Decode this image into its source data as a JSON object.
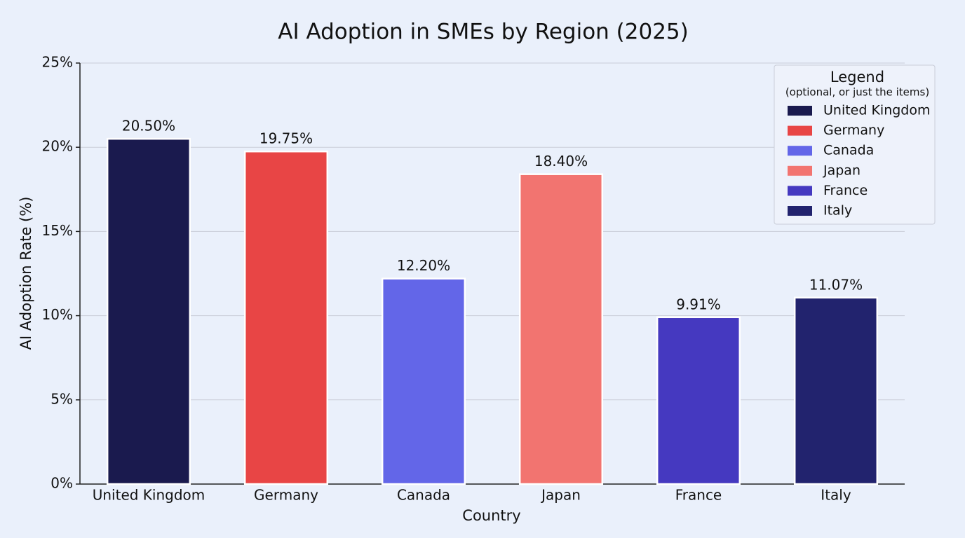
{
  "chart_data": {
    "type": "bar",
    "title": "AI Adoption in SMEs by Region (2025)",
    "x_label": "Country",
    "y_label": "AI Adoption Rate (%)",
    "categories": [
      "United Kingdom",
      "Germany",
      "Canada",
      "Japan",
      "France",
      "Italy"
    ],
    "values": [
      20.5,
      19.75,
      12.2,
      18.4,
      9.91,
      11.07
    ],
    "value_labels": [
      "20.50%",
      "19.75%",
      "12.20%",
      "18.40%",
      "9.91%",
      "11.07%"
    ],
    "colors": [
      "#1a1a4e",
      "#e84545",
      "#6366e8",
      "#f27470",
      "#4539c0",
      "#22236e"
    ],
    "ylim": [
      0,
      25
    ],
    "yticks": [
      {
        "value": 0,
        "label": "0%"
      },
      {
        "value": 5,
        "label": "5%"
      },
      {
        "value": 10,
        "label": "10%"
      },
      {
        "value": 15,
        "label": "15%"
      },
      {
        "value": 20,
        "label": "20%"
      },
      {
        "value": 25,
        "label": "25%"
      }
    ],
    "grid": true,
    "legend": {
      "title": "Legend",
      "subtitle": "(optional, or just the items)",
      "position": "upper right"
    }
  }
}
